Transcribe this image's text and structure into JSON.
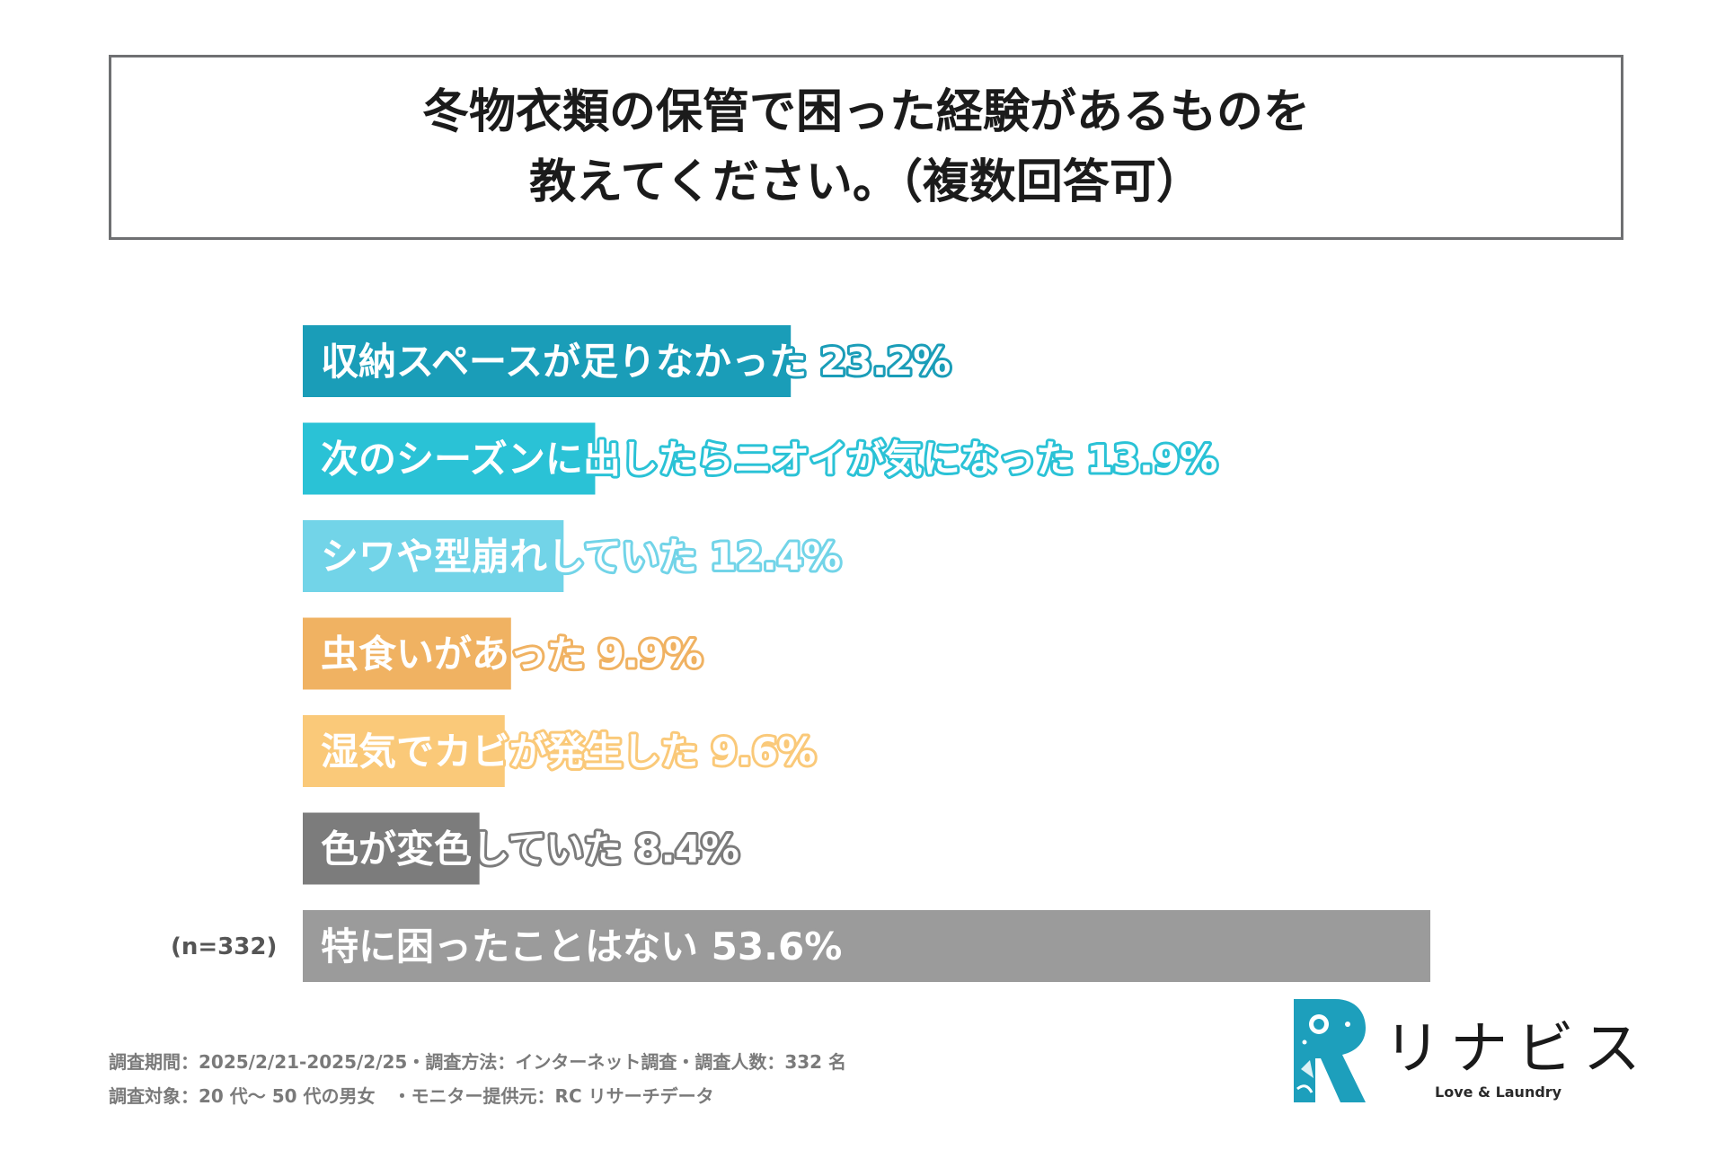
{
  "chart_data": {
    "type": "bar",
    "orientation": "horizontal",
    "title": [
      "冬物衣類の保管で困った経験があるものを",
      "教えてください。（複数回答可）"
    ],
    "categories": [
      "収納スペースが足りなかった",
      "次のシーズンに出したらニオイが気になった",
      "シワや型崩れしていた",
      "虫食いがあった",
      "湿気でカビが発生した",
      "色が変色していた",
      "特に困ったことはない"
    ],
    "values": [
      23.2,
      13.9,
      12.4,
      9.9,
      9.6,
      8.4,
      53.6
    ],
    "value_labels": [
      "23.2%",
      "13.9%",
      "12.4%",
      "9.9%",
      "9.6%",
      "8.4%",
      "53.6%"
    ],
    "colors": [
      "#1a9db8",
      "#2ac2d6",
      "#72d4e8",
      "#f0b262",
      "#fac979",
      "#7c7c7c",
      "#9b9b9b"
    ],
    "sample_label": "(n=332)",
    "xlim": [
      0,
      53.6
    ],
    "grid": false,
    "legend": "none"
  },
  "footer": {
    "line1": "調査期間：2025/2/21-2025/2/25・調査方法：インターネット調査・調査人数：332 名",
    "line2": "調査対象：20 代～ 50 代の男女　・モニター提供元：RC リサーチデータ"
  },
  "logo": {
    "name": "リナビス",
    "tagline": "Love & Laundry",
    "mark_icon": "rinavis-r-logo-icon",
    "colors": [
      "#1d9fbc",
      "#17b3c5"
    ]
  }
}
